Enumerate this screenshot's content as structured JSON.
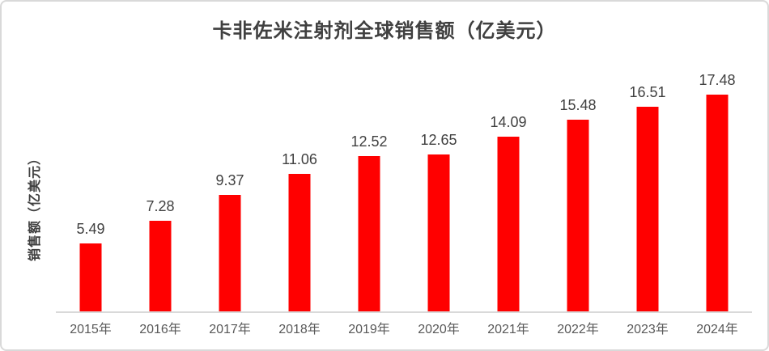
{
  "chart_data": {
    "type": "bar",
    "title": "卡非佐米注射剂全球销售额（亿美元）",
    "xlabel": "",
    "ylabel": "销售额（亿美元）",
    "categories": [
      "2015年",
      "2016年",
      "2017年",
      "2018年",
      "2019年",
      "2020年",
      "2021年",
      "2022年",
      "2023年",
      "2024年"
    ],
    "values": [
      5.49,
      7.28,
      9.37,
      11.06,
      12.52,
      12.65,
      14.09,
      15.48,
      16.51,
      17.48
    ],
    "series_name": "销售额",
    "ylim": [
      0,
      18
    ],
    "grid": false,
    "legend_position": "none",
    "data_labels": "above-bars",
    "colors": {
      "bar": "#ff0000",
      "title_text": "#404040",
      "value_label_text": "#404040",
      "category_label_text": "#595959",
      "axis_line": "#d9d9d9",
      "card_border": "#d9d9d9",
      "background": "#ffffff"
    }
  }
}
